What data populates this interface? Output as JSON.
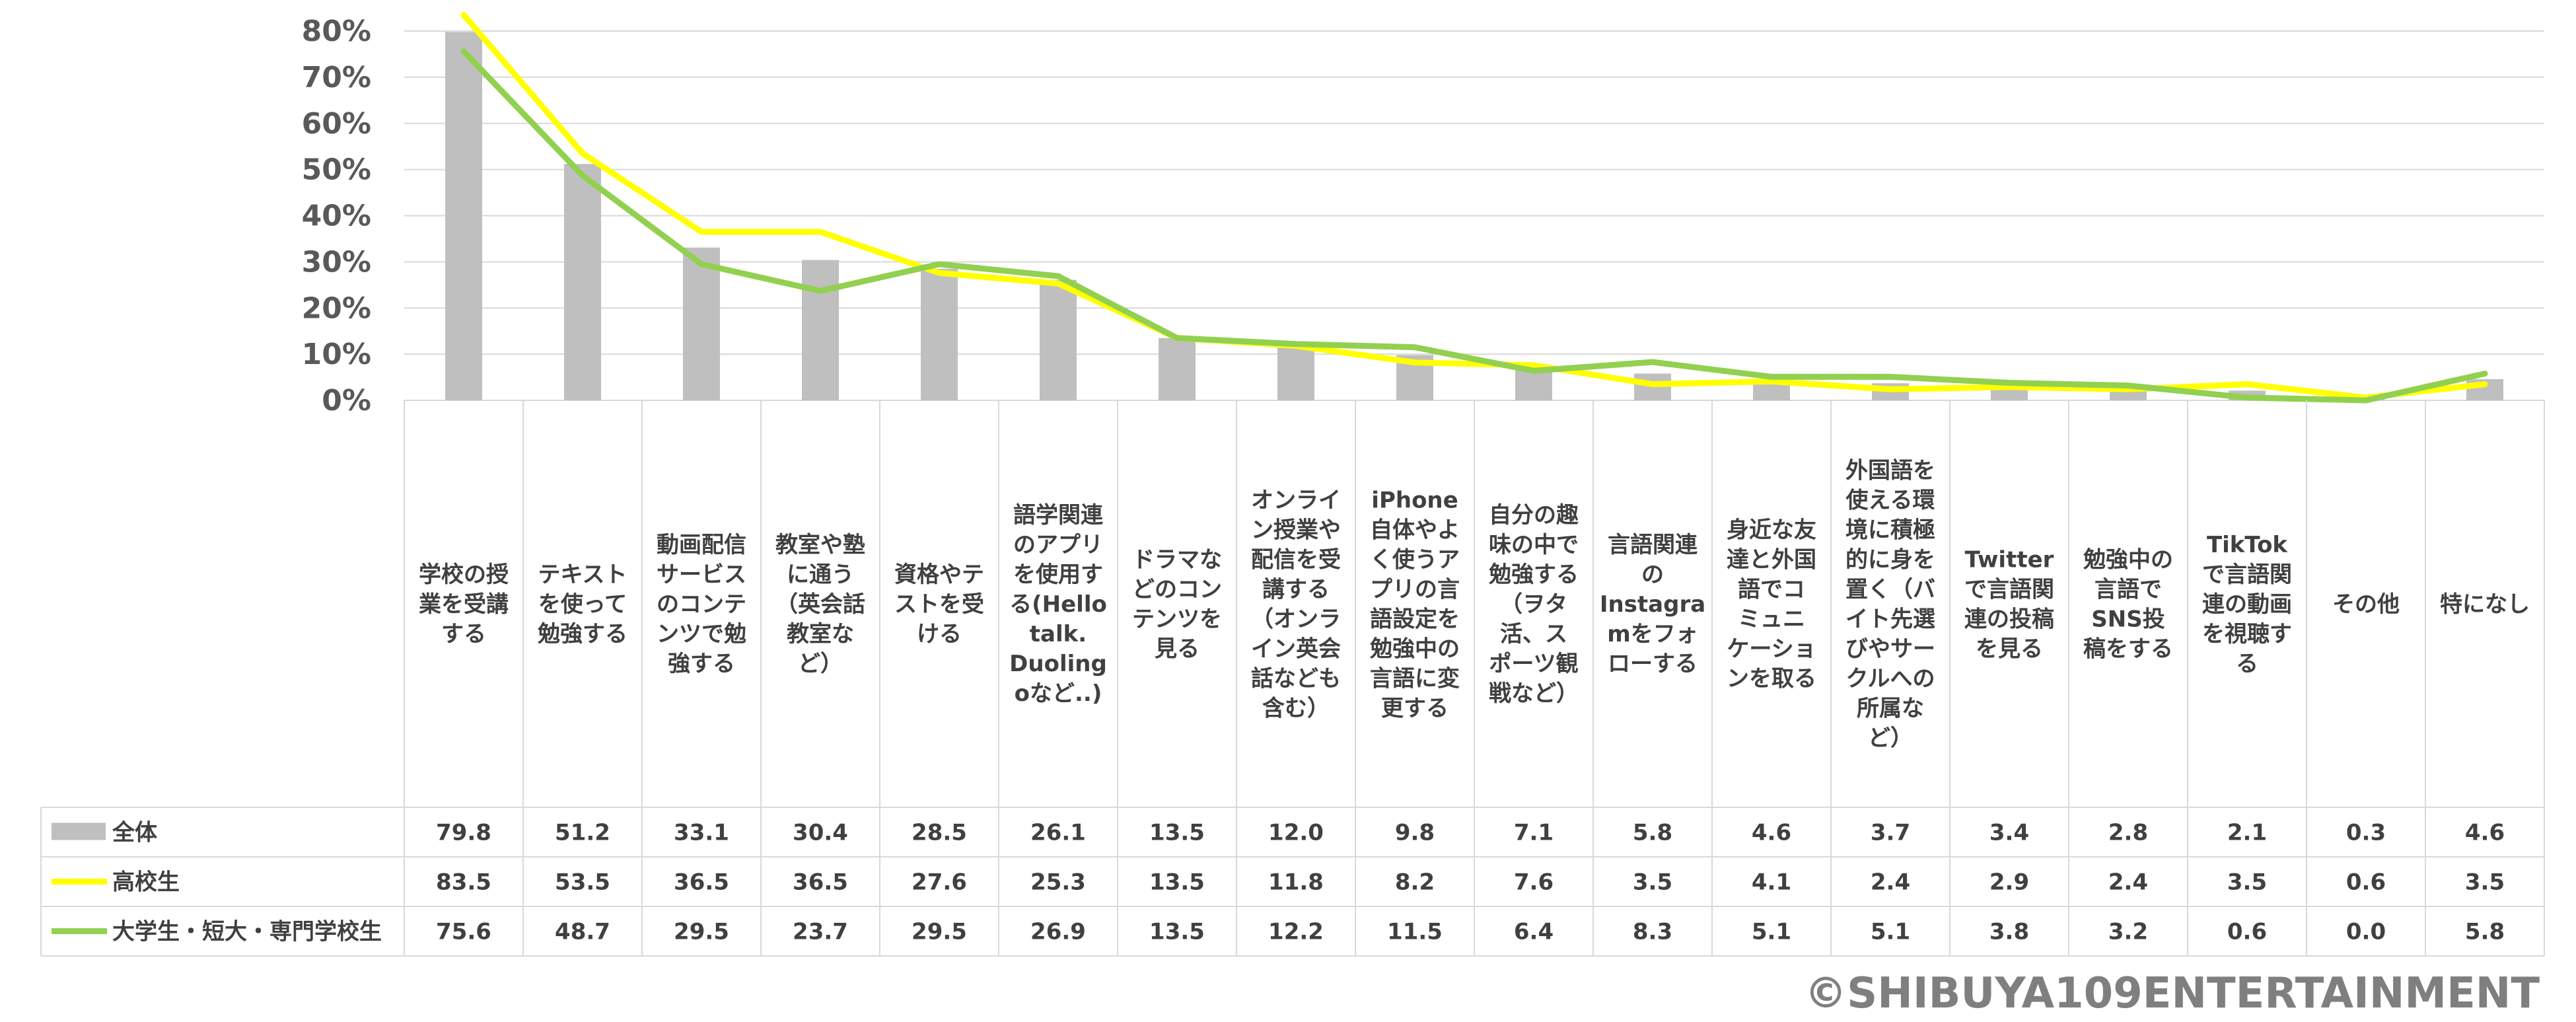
{
  "chart_data": {
    "type": "bar",
    "ylim": [
      0,
      80
    ],
    "y_ticks": [
      "0%",
      "10%",
      "20%",
      "30%",
      "40%",
      "50%",
      "60%",
      "70%",
      "80%"
    ],
    "grid": true,
    "legend": "data-table",
    "categories": [
      [
        "学校の授",
        "業を受講",
        "する"
      ],
      [
        "テキスト",
        "を使って",
        "勉強する"
      ],
      [
        "動画配信",
        "サービス",
        "のコンテ",
        "ンツで勉",
        "強する"
      ],
      [
        "教室や塾",
        "に通う",
        "（英会話",
        "教室な",
        "ど）"
      ],
      [
        "資格やテ",
        "ストを受",
        "ける"
      ],
      [
        "語学関連",
        "のアプリ",
        "を使用す",
        "る(Hello",
        "talk.",
        "Duoling",
        "oなど..)"
      ],
      [
        "ドラマな",
        "どのコン",
        "テンツを",
        "見る"
      ],
      [
        "オンライ",
        "ン授業や",
        "配信を受",
        "講する",
        "（オンラ",
        "イン英会",
        "話なども",
        "含む）"
      ],
      [
        "iPhone",
        "自体やよ",
        "く使うア",
        "プリの言",
        "語設定を",
        "勉強中の",
        "言語に変",
        "更する"
      ],
      [
        "自分の趣",
        "味の中で",
        "勉強する",
        "（ヲタ",
        "活、ス",
        "ポーツ観",
        "戦など）"
      ],
      [
        "言語関連",
        "の",
        "Instagra",
        "mをフォ",
        "ローする"
      ],
      [
        "身近な友",
        "達と外国",
        "語でコ",
        "ミュニ",
        "ケーショ",
        "ンを取る"
      ],
      [
        "外国語を",
        "使える環",
        "境に積極",
        "的に身を",
        "置く（バ",
        "イト先選",
        "びやサー",
        "クルへの",
        "所属な",
        "ど）"
      ],
      [
        "Twitter",
        "で言語関",
        "連の投稿",
        "を見る"
      ],
      [
        "勉強中の",
        "言語で",
        "SNS投",
        "稿をする"
      ],
      [
        "TikTok",
        "で言語関",
        "連の動画",
        "を視聴す",
        "る"
      ],
      [
        "その他"
      ],
      [
        "特になし"
      ]
    ],
    "series": [
      {
        "name": "全体",
        "type": "bar",
        "color": "#bfbfbf",
        "values": [
          79.8,
          51.2,
          33.1,
          30.4,
          28.5,
          26.1,
          13.5,
          12.0,
          9.8,
          7.1,
          5.8,
          4.6,
          3.7,
          3.4,
          2.8,
          2.1,
          0.3,
          4.6
        ],
        "labels": [
          "79.8",
          "51.2",
          "33.1",
          "30.4",
          "28.5",
          "26.1",
          "13.5",
          "12.0",
          "9.8",
          "7.1",
          "5.8",
          "4.6",
          "3.7",
          "3.4",
          "2.8",
          "2.1",
          "0.3",
          "4.6"
        ]
      },
      {
        "name": "高校生",
        "type": "line",
        "color": "#ffff00",
        "values": [
          83.5,
          53.5,
          36.5,
          36.5,
          27.6,
          25.3,
          13.5,
          11.8,
          8.2,
          7.6,
          3.5,
          4.1,
          2.4,
          2.9,
          2.4,
          3.5,
          0.6,
          3.5
        ],
        "labels": [
          "83.5",
          "53.5",
          "36.5",
          "36.5",
          "27.6",
          "25.3",
          "13.5",
          "11.8",
          "8.2",
          "7.6",
          "3.5",
          "4.1",
          "2.4",
          "2.9",
          "2.4",
          "3.5",
          "0.6",
          "3.5"
        ]
      },
      {
        "name": "大学生・短大・専門学校生",
        "type": "line",
        "color": "#92d050",
        "values": [
          75.6,
          48.7,
          29.5,
          23.7,
          29.5,
          26.9,
          13.5,
          12.2,
          11.5,
          6.4,
          8.3,
          5.1,
          5.1,
          3.8,
          3.2,
          0.6,
          0.0,
          5.8
        ],
        "labels": [
          "75.6",
          "48.7",
          "29.5",
          "23.7",
          "29.5",
          "26.9",
          "13.5",
          "12.2",
          "11.5",
          "6.4",
          "8.3",
          "5.1",
          "5.1",
          "3.8",
          "3.2",
          "0.6",
          "0.0",
          "5.8"
        ]
      }
    ]
  },
  "credit": "©SHIBUYA109ENTERTAINMENT"
}
